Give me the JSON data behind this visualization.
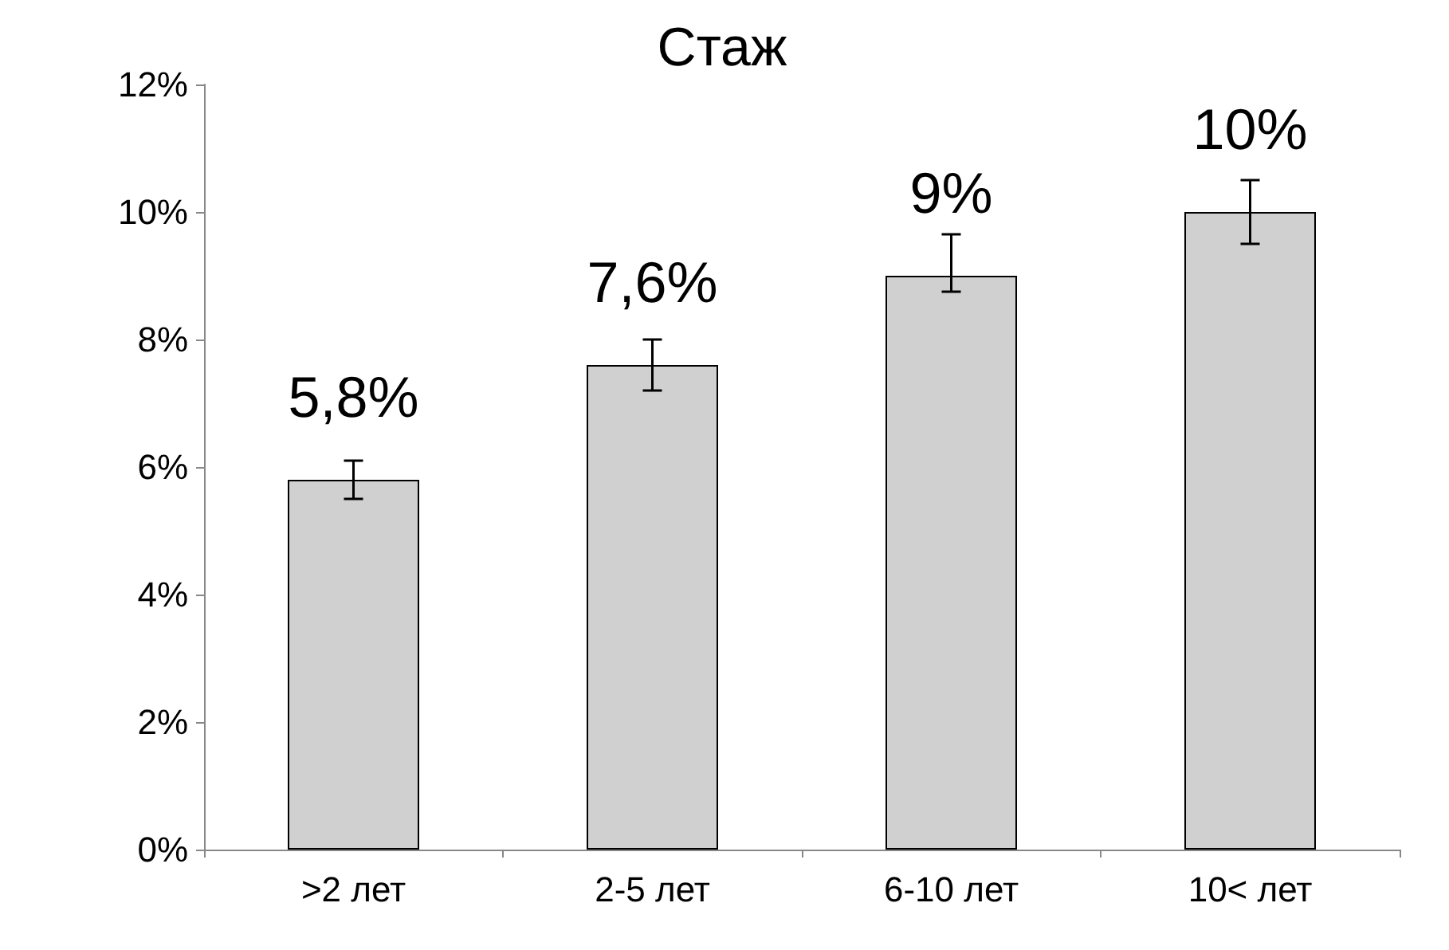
{
  "chart_data": {
    "type": "bar",
    "title": "Стаж",
    "categories": [
      ">2 лет",
      "2-5 лет",
      "6-10 лет",
      "10< лет"
    ],
    "values": [
      5.8,
      7.6,
      9,
      10
    ],
    "value_labels": [
      "5,8%",
      "7,6%",
      "9%",
      "10%"
    ],
    "errors": [
      0.3,
      0.4,
      [
        8.75,
        9.65
      ],
      0.5
    ],
    "color": "#d0d0d0",
    "ylim": [
      0,
      12
    ],
    "yticks": [
      {
        "value": 0,
        "label": "0%"
      },
      {
        "value": 2,
        "label": "2%"
      },
      {
        "value": 4,
        "label": "4%"
      },
      {
        "value": 6,
        "label": "6%"
      },
      {
        "value": 8,
        "label": "8%"
      },
      {
        "value": 10,
        "label": "10%"
      },
      {
        "value": 12,
        "label": "12%"
      }
    ],
    "grid": false
  }
}
